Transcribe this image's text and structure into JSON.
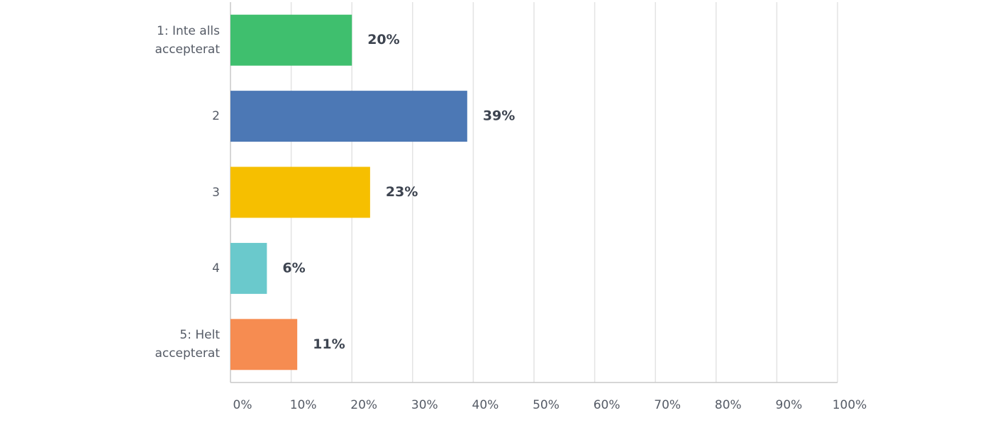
{
  "chart_data": {
    "type": "hbar",
    "categories": [
      "1: Inte alls accepterat",
      "2",
      "3",
      "4",
      "5: Helt accepterat"
    ],
    "values": [
      20,
      39,
      23,
      6,
      11
    ],
    "value_labels": [
      "20%",
      "39%",
      "23%",
      "6%",
      "11%"
    ],
    "colors": [
      "#3fbf6e",
      "#4c78b5",
      "#f6bf00",
      "#6ac9cc",
      "#f68c51"
    ],
    "xlim": [
      0,
      100
    ],
    "xticks": [
      {
        "value": 0,
        "label": "0%"
      },
      {
        "value": 10,
        "label": "10%"
      },
      {
        "value": 20,
        "label": "20%"
      },
      {
        "value": 30,
        "label": "30%"
      },
      {
        "value": 40,
        "label": "40%"
      },
      {
        "value": 50,
        "label": "50%"
      },
      {
        "value": 60,
        "label": "60%"
      },
      {
        "value": 70,
        "label": "70%"
      },
      {
        "value": 80,
        "label": "80%"
      },
      {
        "value": 90,
        "label": "90%"
      },
      {
        "value": 100,
        "label": "100%"
      }
    ],
    "grid": true
  }
}
